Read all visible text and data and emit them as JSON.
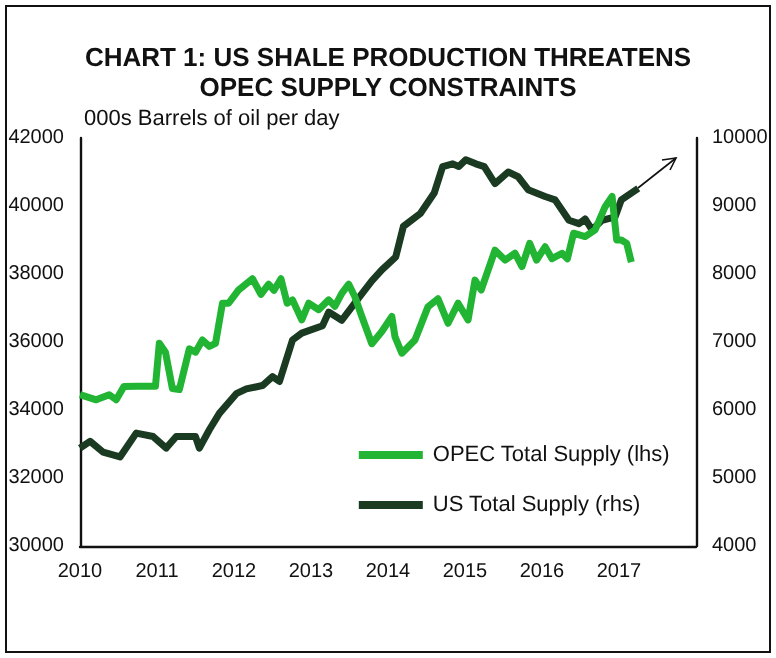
{
  "chart_data": {
    "type": "line",
    "title": "CHART 1: US SHALE PRODUCTION THREATENS\nOPEC SUPPLY CONSTRAINTS",
    "ylabel": "000s Barrels of oil per day",
    "xlim": [
      2010,
      2018
    ],
    "xticks": [
      2010,
      2011,
      2012,
      2013,
      2014,
      2015,
      2016,
      2017
    ],
    "ylim": [
      30000,
      42000
    ],
    "yticks": [
      30000,
      32000,
      34000,
      36000,
      38000,
      40000,
      42000
    ],
    "y2lim": [
      4000,
      10000
    ],
    "y2ticks": [
      4000,
      5000,
      6000,
      7000,
      8000,
      9000,
      10000
    ],
    "legend": "bottom right",
    "series": [
      {
        "name": "OPEC Total Supply (lhs)",
        "color": "#22b534",
        "x": [
          2010.0,
          2010.21,
          2010.38,
          2010.47,
          2010.57,
          2010.74,
          2010.98,
          2011.03,
          2011.11,
          2011.2,
          2011.29,
          2011.42,
          2011.5,
          2011.59,
          2011.68,
          2011.76,
          2011.85,
          2011.93,
          2012.06,
          2012.24,
          2012.35,
          2012.45,
          2012.52,
          2012.61,
          2012.69,
          2012.76,
          2012.88,
          2012.97,
          2013.1,
          2013.23,
          2013.31,
          2013.4,
          2013.49,
          2013.57,
          2013.66,
          2013.79,
          2013.92,
          2014.05,
          2014.09,
          2014.18,
          2014.35,
          2014.52,
          2014.65,
          2014.78,
          2014.91,
          2015.04,
          2015.13,
          2015.21,
          2015.39,
          2015.52,
          2015.65,
          2015.74,
          2015.84,
          2015.93,
          2016.04,
          2016.13,
          2016.26,
          2016.33,
          2016.41,
          2016.56,
          2016.69,
          2016.82,
          2016.91,
          2016.97,
          2017.03,
          2017.1,
          2017.16
        ],
        "values": [
          34450,
          34300,
          34450,
          34300,
          34690,
          34700,
          34700,
          35960,
          35700,
          34630,
          34600,
          35800,
          35700,
          36060,
          35870,
          35960,
          37140,
          37140,
          37530,
          37860,
          37400,
          37700,
          37520,
          37860,
          37140,
          37240,
          36650,
          37140,
          36950,
          37240,
          37050,
          37430,
          37700,
          37330,
          36750,
          35950,
          36310,
          36750,
          36160,
          35670,
          36060,
          37040,
          37270,
          36550,
          37140,
          36650,
          37820,
          37530,
          38700,
          38410,
          38610,
          38220,
          38900,
          38410,
          38800,
          38450,
          38610,
          38450,
          39200,
          39100,
          39300,
          39980,
          40280,
          39000,
          39000,
          38900,
          38350
        ]
      },
      {
        "name": "US Total Supply (rhs)",
        "color": "#1b3a22",
        "axis": "y2",
        "x": [
          2010.0,
          2010.13,
          2010.3,
          2010.52,
          2010.73,
          2010.95,
          2011.12,
          2011.25,
          2011.5,
          2011.55,
          2011.68,
          2011.81,
          2012.03,
          2012.16,
          2012.37,
          2012.5,
          2012.59,
          2012.76,
          2012.88,
          2013.15,
          2013.23,
          2013.4,
          2013.62,
          2013.79,
          2013.92,
          2014.1,
          2014.2,
          2014.42,
          2014.6,
          2014.71,
          2014.84,
          2014.92,
          2015.01,
          2015.14,
          2015.25,
          2015.39,
          2015.56,
          2015.69,
          2015.82,
          2016.04,
          2016.17,
          2016.35,
          2016.48,
          2016.56,
          2016.65,
          2016.78,
          2016.95,
          2017.03,
          2017.25
        ],
        "values": [
          5440,
          5540,
          5380,
          5310,
          5660,
          5610,
          5440,
          5610,
          5610,
          5440,
          5710,
          5950,
          6240,
          6310,
          6360,
          6490,
          6420,
          7030,
          7130,
          7240,
          7440,
          7320,
          7650,
          7900,
          8060,
          8250,
          8700,
          8890,
          9190,
          9580,
          9620,
          9580,
          9680,
          9620,
          9580,
          9330,
          9500,
          9430,
          9240,
          9140,
          9090,
          8790,
          8740,
          8810,
          8650,
          8790,
          8840,
          9090,
          9260
        ]
      }
    ]
  }
}
